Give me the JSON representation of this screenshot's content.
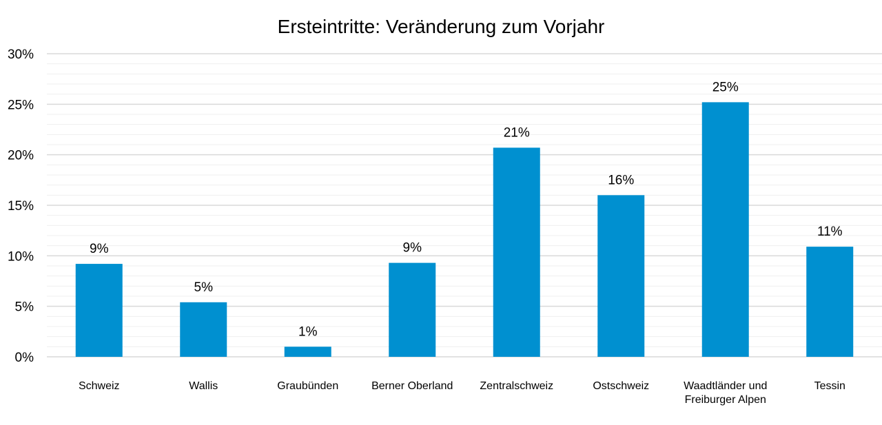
{
  "chart_data": {
    "type": "bar",
    "title": "Ersteintritte: Veränderung zum Vorjahr",
    "categories": [
      [
        "Schweiz"
      ],
      [
        "Wallis"
      ],
      [
        "Graubünden"
      ],
      [
        "Berner Oberland"
      ],
      [
        "Zentralschweiz"
      ],
      [
        "Ostschweiz"
      ],
      [
        "Waadtländer und",
        "Freiburger Alpen"
      ],
      [
        "Tessin"
      ]
    ],
    "values": [
      9.2,
      5.4,
      1.0,
      9.3,
      20.7,
      16.0,
      25.2,
      10.9
    ],
    "data_labels": [
      "9%",
      "5%",
      "1%",
      "9%",
      "21%",
      "16%",
      "25%",
      "11%"
    ],
    "ylim": [
      0,
      30
    ],
    "yticks": [
      0,
      5,
      10,
      15,
      20,
      25,
      30
    ],
    "ytick_labels": [
      "0%",
      "5%",
      "10%",
      "15%",
      "20%",
      "25%",
      "30%"
    ],
    "minor_grid_step": 1,
    "grid": true,
    "legend": "none",
    "bar_color": "#0090d0",
    "grid_color": "#d9d9d9",
    "minor_grid_color": "#efefef"
  }
}
